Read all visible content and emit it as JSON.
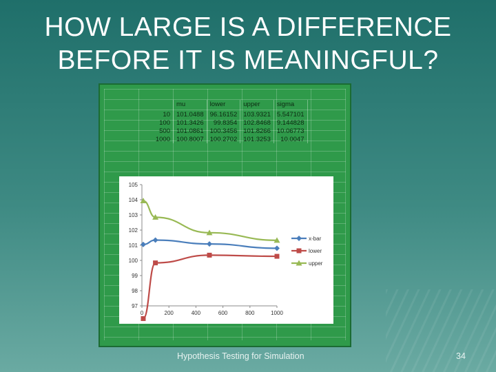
{
  "slide": {
    "title_lines": [
      "HOW LARGE IS A DIFFERENCE",
      "BEFORE IT IS MEANINGFUL?"
    ],
    "footer": "Hypothesis Testing for Simulation",
    "page_number": "34"
  },
  "table": {
    "headers": [
      "",
      "mu",
      "lower",
      "upper",
      "sigma"
    ],
    "rows": [
      [
        "10",
        "101.0488",
        "96.16152",
        "103.9321",
        "5.547101"
      ],
      [
        "100",
        "101.3426",
        "99.8354",
        "102.8468",
        "9.144828"
      ],
      [
        "500",
        "101.0861",
        "100.3456",
        "101.8266",
        "10.06773"
      ],
      [
        "1000",
        "100.8007",
        "100.2702",
        "101.3253",
        "10.0047"
      ]
    ]
  },
  "chart_data": {
    "type": "line",
    "x": [
      10,
      100,
      500,
      1000
    ],
    "series": [
      {
        "name": "x-bar",
        "values": [
          101.0488,
          101.3426,
          101.0861,
          100.8007
        ],
        "color": "#4a7ebb",
        "marker": "diamond"
      },
      {
        "name": "lower",
        "values": [
          96.16152,
          99.8354,
          100.3456,
          100.2702
        ],
        "color": "#be4b48",
        "marker": "square"
      },
      {
        "name": "upper",
        "values": [
          103.9321,
          102.8468,
          101.8266,
          101.3253
        ],
        "color": "#98b954",
        "marker": "triangle"
      }
    ],
    "xlim": [
      0,
      1000
    ],
    "ylim": [
      97,
      105
    ],
    "x_ticks": [
      "0",
      "200",
      "400",
      "600",
      "800",
      "1000"
    ],
    "y_ticks": [
      "105",
      "104",
      "103",
      "102",
      "101",
      "100",
      "99",
      "98",
      "97"
    ],
    "legend": "right",
    "grid": false
  }
}
